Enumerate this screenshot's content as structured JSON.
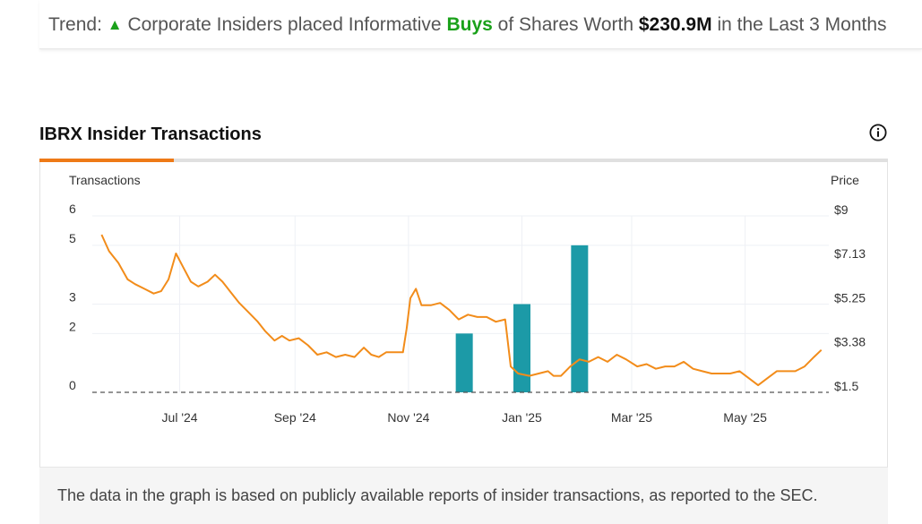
{
  "trend": {
    "prefix": "Trend:",
    "arrow": "▲",
    "text_before": "Corporate Insiders placed Informative",
    "highlight": "Buys",
    "text_middle": "of Shares Worth",
    "amount": "$230.9M",
    "text_after": "in the Last 3 Months"
  },
  "section": {
    "title": "IBRX Insider Transactions",
    "info_icon": "info-circle-icon"
  },
  "footer": {
    "note": "The data in the graph is based on publicly available reports of insider transactions, as reported to the SEC."
  },
  "colors": {
    "accent": "#ee7a17",
    "price_line": "#f28c1a",
    "bars": "#1c9aa7",
    "buy_green": "#1aa11a"
  },
  "chart_data": {
    "type": "bar+line",
    "left_axis_label": "Transactions",
    "right_axis_label": "Price",
    "left_ticks": [
      {
        "label": "0",
        "value": 0
      },
      {
        "label": "2",
        "value": 2
      },
      {
        "label": "3",
        "value": 3
      },
      {
        "label": "5",
        "value": 5
      },
      {
        "label": "6",
        "value": 6
      }
    ],
    "right_ticks": [
      {
        "label": "$1.5",
        "value": 1.5
      },
      {
        "label": "$3.38",
        "value": 3.38
      },
      {
        "label": "$5.25",
        "value": 5.25
      },
      {
        "label": "$7.13",
        "value": 7.13
      },
      {
        "label": "$9",
        "value": 9
      }
    ],
    "left_range": [
      0,
      6
    ],
    "right_range": [
      1.5,
      9
    ],
    "x_range": [
      "2024-05-15",
      "2025-06-15"
    ],
    "x_ticks": [
      {
        "label": "Jul '24",
        "date": "2024-07-01"
      },
      {
        "label": "Sep '24",
        "date": "2024-09-01"
      },
      {
        "label": "Nov '24",
        "date": "2024-11-01"
      },
      {
        "label": "Jan '25",
        "date": "2025-01-01"
      },
      {
        "label": "Mar '25",
        "date": "2025-03-01"
      },
      {
        "label": "May '25",
        "date": "2025-05-01"
      }
    ],
    "bars": [
      {
        "date": "2024-12-01",
        "value": 2
      },
      {
        "date": "2025-01-01",
        "value": 3
      },
      {
        "date": "2025-02-01",
        "value": 5
      }
    ],
    "price_series": {
      "points": [
        [
          "2024-05-20",
          8.2
        ],
        [
          "2024-05-24",
          7.5
        ],
        [
          "2024-05-29",
          7.0
        ],
        [
          "2024-06-03",
          6.3
        ],
        [
          "2024-06-07",
          6.1
        ],
        [
          "2024-06-12",
          5.9
        ],
        [
          "2024-06-17",
          5.7
        ],
        [
          "2024-06-21",
          5.8
        ],
        [
          "2024-06-25",
          6.3
        ],
        [
          "2024-06-29",
          7.4
        ],
        [
          "2024-07-03",
          6.8
        ],
        [
          "2024-07-07",
          6.2
        ],
        [
          "2024-07-11",
          6.0
        ],
        [
          "2024-07-16",
          6.2
        ],
        [
          "2024-07-20",
          6.5
        ],
        [
          "2024-07-24",
          6.2
        ],
        [
          "2024-07-28",
          5.8
        ],
        [
          "2024-08-02",
          5.3
        ],
        [
          "2024-08-07",
          4.9
        ],
        [
          "2024-08-12",
          4.5
        ],
        [
          "2024-08-16",
          4.1
        ],
        [
          "2024-08-21",
          3.7
        ],
        [
          "2024-08-25",
          3.9
        ],
        [
          "2024-08-29",
          3.7
        ],
        [
          "2024-09-03",
          3.8
        ],
        [
          "2024-09-08",
          3.5
        ],
        [
          "2024-09-13",
          3.1
        ],
        [
          "2024-09-18",
          3.2
        ],
        [
          "2024-09-23",
          3.0
        ],
        [
          "2024-09-28",
          3.1
        ],
        [
          "2024-10-03",
          3.0
        ],
        [
          "2024-10-08",
          3.4
        ],
        [
          "2024-10-12",
          3.1
        ],
        [
          "2024-10-16",
          3.0
        ],
        [
          "2024-10-20",
          3.2
        ],
        [
          "2024-10-25",
          3.2
        ],
        [
          "2024-10-29",
          3.2
        ],
        [
          "2024-10-31",
          4.2
        ],
        [
          "2024-11-02",
          5.5
        ],
        [
          "2024-11-05",
          5.9
        ],
        [
          "2024-11-08",
          5.2
        ],
        [
          "2024-11-13",
          5.2
        ],
        [
          "2024-11-18",
          5.3
        ],
        [
          "2024-11-23",
          5.0
        ],
        [
          "2024-11-28",
          4.6
        ],
        [
          "2024-12-03",
          4.8
        ],
        [
          "2024-12-08",
          4.7
        ],
        [
          "2024-12-13",
          4.7
        ],
        [
          "2024-12-18",
          4.5
        ],
        [
          "2024-12-23",
          4.6
        ],
        [
          "2024-12-26",
          2.6
        ],
        [
          "2024-12-30",
          2.3
        ],
        [
          "2025-01-05",
          2.2
        ],
        [
          "2025-01-10",
          2.3
        ],
        [
          "2025-01-15",
          2.4
        ],
        [
          "2025-01-18",
          2.2
        ],
        [
          "2025-01-22",
          2.2
        ],
        [
          "2025-01-27",
          2.6
        ],
        [
          "2025-02-01",
          2.9
        ],
        [
          "2025-02-06",
          2.8
        ],
        [
          "2025-02-11",
          3.0
        ],
        [
          "2025-02-16",
          2.8
        ],
        [
          "2025-02-21",
          3.1
        ],
        [
          "2025-02-26",
          2.9
        ],
        [
          "2025-03-04",
          2.6
        ],
        [
          "2025-03-09",
          2.7
        ],
        [
          "2025-03-14",
          2.5
        ],
        [
          "2025-03-19",
          2.6
        ],
        [
          "2025-03-24",
          2.6
        ],
        [
          "2025-03-29",
          2.8
        ],
        [
          "2025-04-03",
          2.5
        ],
        [
          "2025-04-08",
          2.4
        ],
        [
          "2025-04-13",
          2.3
        ],
        [
          "2025-04-18",
          2.3
        ],
        [
          "2025-04-23",
          2.3
        ],
        [
          "2025-04-28",
          2.4
        ],
        [
          "2025-05-03",
          2.1
        ],
        [
          "2025-05-08",
          1.8
        ],
        [
          "2025-05-13",
          2.1
        ],
        [
          "2025-05-18",
          2.4
        ],
        [
          "2025-05-23",
          2.4
        ],
        [
          "2025-05-28",
          2.4
        ],
        [
          "2025-06-02",
          2.6
        ],
        [
          "2025-06-07",
          3.0
        ],
        [
          "2025-06-11",
          3.3
        ]
      ]
    },
    "grid": true
  }
}
